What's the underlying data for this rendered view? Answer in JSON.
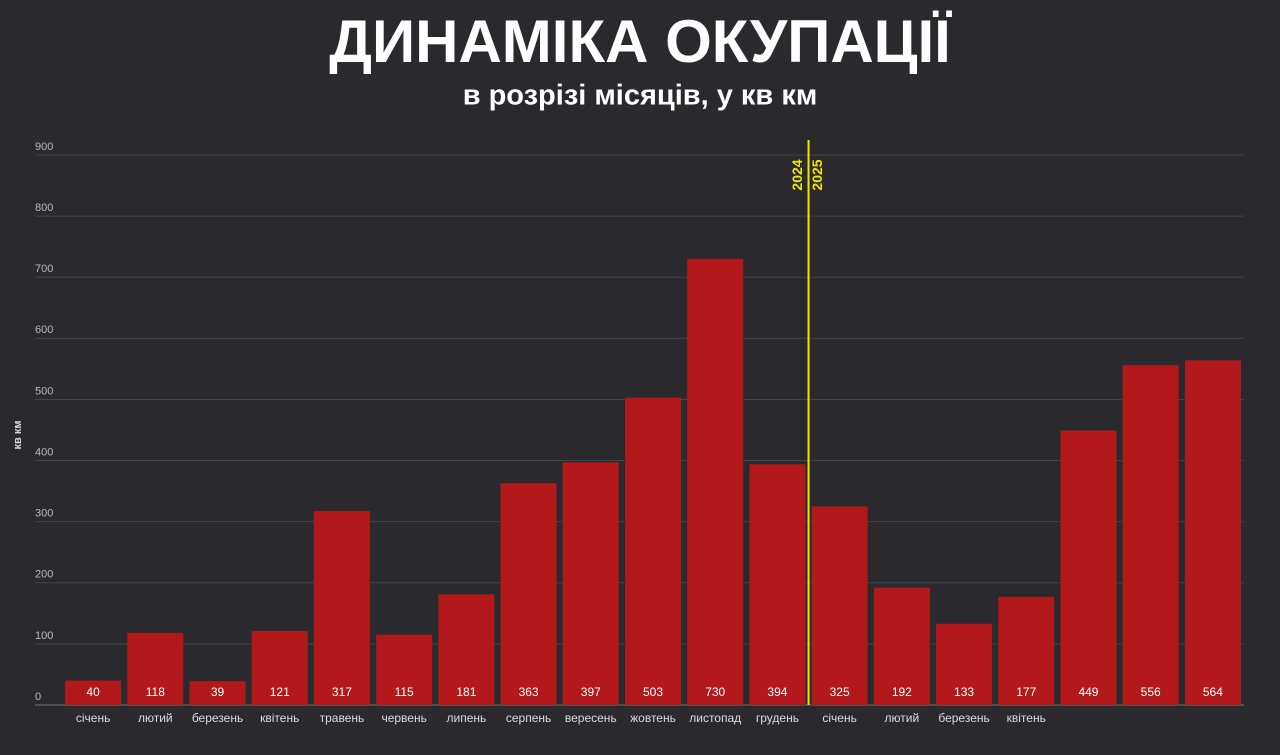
{
  "chart_data": {
    "type": "bar",
    "title": "ДИНАМІКА ОКУПАЦІЇ",
    "subtitle": "в розрізі місяців, у кв км",
    "y_label": "кв км",
    "annotations": [
      "2024",
      "2025"
    ],
    "categories": [
      "січень",
      "лютий",
      "березень",
      "квітень",
      "травень",
      "червень",
      "липень",
      "серпень",
      "вересень",
      "жовтень",
      "листопад",
      "грудень",
      "січень",
      "лютий",
      "березень",
      "квітень",
      null,
      null,
      null
    ],
    "values": [
      40,
      118,
      39,
      121,
      317,
      115,
      181,
      363,
      397,
      503,
      730,
      394,
      325,
      192,
      133,
      177,
      449,
      556,
      564
    ],
    "color": "#b3191b",
    "divider_color": "#f2e600",
    "ylim": [
      0,
      900
    ],
    "yticks": [
      0,
      100,
      200,
      300,
      400,
      500,
      600,
      700,
      800,
      900
    ],
    "grid": true
  }
}
